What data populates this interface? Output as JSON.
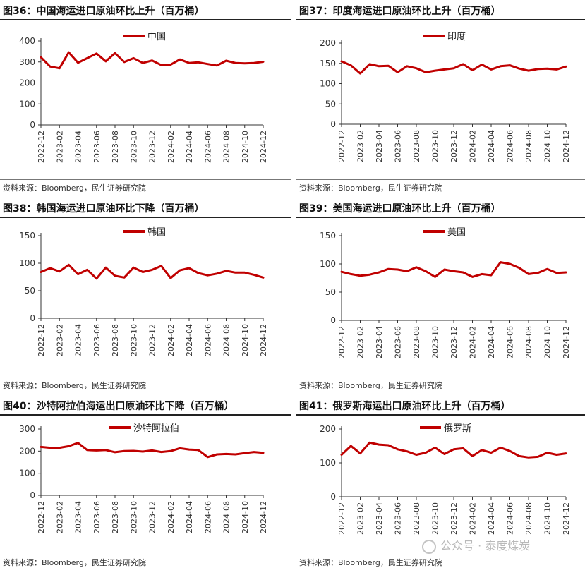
{
  "source_text": "资料来源：Bloomberg，民生证券研究院",
  "watermark": "公众号 · 泰度煤炭",
  "line_color": "#c00000",
  "chart_data": [
    {
      "type": "line",
      "title": "图36：中国海运进口原油环比上升（百万桶）",
      "series": [
        {
          "name": "中国",
          "values": [
            322,
            278,
            270,
            346,
            296,
            318,
            340,
            303,
            342,
            300,
            318,
            295,
            307,
            285,
            287,
            312,
            295,
            298,
            290,
            283,
            306,
            295,
            293,
            295,
            301
          ]
        }
      ],
      "x": [
        "2022-12",
        "2023-01",
        "2023-02",
        "2023-03",
        "2023-04",
        "2023-05",
        "2023-06",
        "2023-07",
        "2023-08",
        "2023-09",
        "2023-10",
        "2023-11",
        "2023-12",
        "2024-01",
        "2024-02",
        "2024-03",
        "2024-04",
        "2024-05",
        "2024-06",
        "2024-07",
        "2024-08",
        "2024-09",
        "2024-10",
        "2024-11",
        "2024-12"
      ],
      "xticks": [
        "2022-12",
        "2023-02",
        "2023-04",
        "2023-06",
        "2023-08",
        "2023-10",
        "2023-12",
        "2024-02",
        "2024-04",
        "2024-06",
        "2024-08",
        "2024-10",
        "2024-12"
      ],
      "ylim": [
        0,
        400
      ],
      "yticks": [
        0,
        100,
        200,
        300,
        400
      ],
      "legend": "top-center"
    },
    {
      "type": "line",
      "title": "图37：印度海运进口原油环比上升（百万桶）",
      "series": [
        {
          "name": "印度",
          "values": [
            155,
            145,
            125,
            148,
            143,
            144,
            128,
            143,
            138,
            128,
            132,
            135,
            138,
            148,
            133,
            147,
            135,
            143,
            145,
            137,
            132,
            136,
            137,
            135,
            142
          ]
        }
      ],
      "x": [
        "2022-12",
        "2023-01",
        "2023-02",
        "2023-03",
        "2023-04",
        "2023-05",
        "2023-06",
        "2023-07",
        "2023-08",
        "2023-09",
        "2023-10",
        "2023-11",
        "2023-12",
        "2024-01",
        "2024-02",
        "2024-03",
        "2024-04",
        "2024-05",
        "2024-06",
        "2024-07",
        "2024-08",
        "2024-09",
        "2024-10",
        "2024-11",
        "2024-12"
      ],
      "xticks": [
        "2022-12",
        "2023-02",
        "2023-04",
        "2023-06",
        "2023-08",
        "2023-10",
        "2023-12",
        "2024-02",
        "2024-04",
        "2024-06",
        "2024-08",
        "2024-10",
        "2024-12"
      ],
      "ylim": [
        0,
        200
      ],
      "yticks": [
        0,
        50,
        100,
        150,
        200
      ],
      "legend": "top-center"
    },
    {
      "type": "line",
      "title": "图38：韩国海运进口原油环比下降（百万桶）",
      "series": [
        {
          "name": "韩国",
          "values": [
            84,
            91,
            85,
            97,
            80,
            88,
            72,
            92,
            77,
            74,
            92,
            84,
            88,
            95,
            73,
            87,
            91,
            82,
            78,
            81,
            86,
            83,
            83,
            79,
            74
          ]
        }
      ],
      "x": [
        "2022-12",
        "2023-01",
        "2023-02",
        "2023-03",
        "2023-04",
        "2023-05",
        "2023-06",
        "2023-07",
        "2023-08",
        "2023-09",
        "2023-10",
        "2023-11",
        "2023-12",
        "2024-01",
        "2024-02",
        "2024-03",
        "2024-04",
        "2024-05",
        "2024-06",
        "2024-07",
        "2024-08",
        "2024-09",
        "2024-10",
        "2024-11",
        "2024-12"
      ],
      "xticks": [
        "2022-12",
        "2023-02",
        "2023-04",
        "2023-06",
        "2023-08",
        "2023-10",
        "2023-12",
        "2024-02",
        "2024-04",
        "2024-06",
        "2024-08",
        "2024-10",
        "2024-12"
      ],
      "ylim": [
        0,
        150
      ],
      "yticks": [
        0,
        50,
        100,
        150
      ],
      "legend": "top-center"
    },
    {
      "type": "line",
      "title": "图39：美国海运进口原油环比上升（百万桶）",
      "series": [
        {
          "name": "美国",
          "values": [
            86,
            82,
            79,
            81,
            85,
            91,
            90,
            87,
            94,
            87,
            77,
            90,
            87,
            85,
            77,
            82,
            80,
            103,
            100,
            93,
            82,
            84,
            91,
            84,
            85
          ]
        }
      ],
      "x": [
        "2022-12",
        "2023-01",
        "2023-02",
        "2023-03",
        "2023-04",
        "2023-05",
        "2023-06",
        "2023-07",
        "2023-08",
        "2023-09",
        "2023-10",
        "2023-11",
        "2023-12",
        "2024-01",
        "2024-02",
        "2024-03",
        "2024-04",
        "2024-05",
        "2024-06",
        "2024-07",
        "2024-08",
        "2024-09",
        "2024-10",
        "2024-11",
        "2024-12"
      ],
      "xticks": [
        "2022-12",
        "2023-02",
        "2023-04",
        "2023-06",
        "2023-08",
        "2023-10",
        "2023-12",
        "2024-02",
        "2024-04",
        "2024-06",
        "2024-08",
        "2024-10",
        "2024-12"
      ],
      "ylim": [
        0,
        150
      ],
      "yticks": [
        0,
        50,
        100,
        150
      ],
      "legend": "top-center"
    },
    {
      "type": "line",
      "title": "图40：沙特阿拉伯海运出口原油环比下降（百万桶）",
      "series": [
        {
          "name": "沙特阿拉伯",
          "values": [
            219,
            215,
            215,
            222,
            237,
            205,
            203,
            205,
            195,
            200,
            201,
            198,
            203,
            196,
            200,
            213,
            207,
            205,
            173,
            185,
            187,
            185,
            191,
            196,
            192
          ]
        }
      ],
      "x": [
        "2022-12",
        "2023-01",
        "2023-02",
        "2023-03",
        "2023-04",
        "2023-05",
        "2023-06",
        "2023-07",
        "2023-08",
        "2023-09",
        "2023-10",
        "2023-11",
        "2023-12",
        "2024-01",
        "2024-02",
        "2024-03",
        "2024-04",
        "2024-05",
        "2024-06",
        "2024-07",
        "2024-08",
        "2024-09",
        "2024-10",
        "2024-11",
        "2024-12"
      ],
      "xticks": [
        "2022-12",
        "2023-02",
        "2023-04",
        "2023-06",
        "2023-08",
        "2023-10",
        "2023-12",
        "2024-02",
        "2024-04",
        "2024-06",
        "2024-08",
        "2024-10",
        "2024-12"
      ],
      "ylim": [
        0,
        300
      ],
      "yticks": [
        0,
        100,
        200,
        300
      ],
      "legend": "top-center"
    },
    {
      "type": "line",
      "title": "图41：俄罗斯海运出口原油环比上升（百万桶）",
      "series": [
        {
          "name": "俄罗斯",
          "values": [
            124,
            150,
            128,
            160,
            154,
            152,
            140,
            134,
            124,
            130,
            145,
            126,
            140,
            143,
            120,
            138,
            130,
            145,
            135,
            120,
            116,
            118,
            130,
            124,
            128
          ]
        }
      ],
      "x": [
        "2022-12",
        "2023-01",
        "2023-02",
        "2023-03",
        "2023-04",
        "2023-05",
        "2023-06",
        "2023-07",
        "2023-08",
        "2023-09",
        "2023-10",
        "2023-11",
        "2023-12",
        "2024-01",
        "2024-02",
        "2024-03",
        "2024-04",
        "2024-05",
        "2024-06",
        "2024-07",
        "2024-08",
        "2024-09",
        "2024-10",
        "2024-11",
        "2024-12"
      ],
      "xticks": [
        "2022-12",
        "2023-02",
        "2023-04",
        "2023-06",
        "2023-08",
        "2023-10",
        "2023-12",
        "2024-02",
        "2024-04",
        "2024-06",
        "2024-08",
        "2024-10",
        "2024-12"
      ],
      "ylim": [
        0,
        200
      ],
      "yticks": [
        0,
        100,
        200
      ],
      "legend": "top-center"
    }
  ]
}
